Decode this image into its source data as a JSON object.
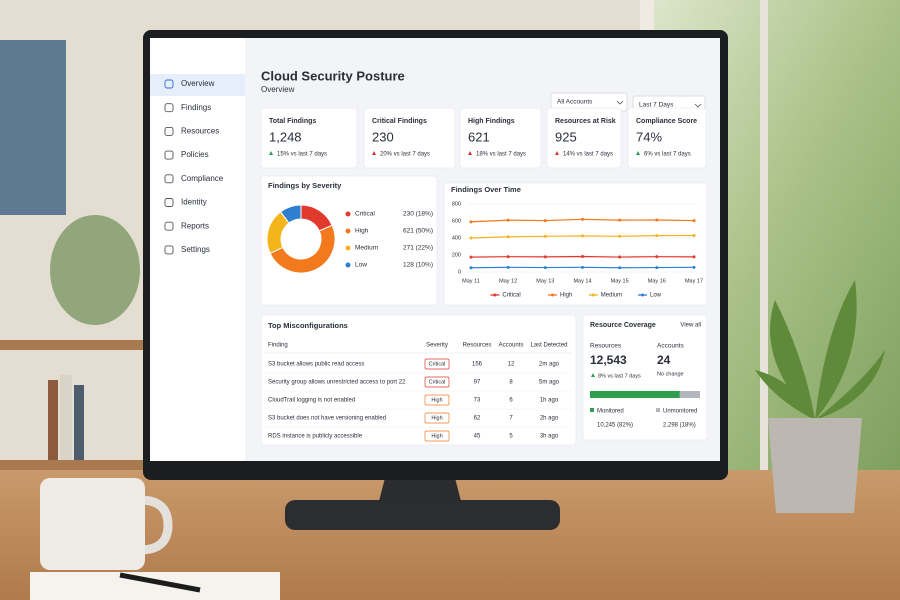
{
  "sidebar": {
    "items": [
      "Overview",
      "Findings",
      "Resources",
      "Policies",
      "Compliance",
      "Identity",
      "Reports",
      "Settings"
    ]
  },
  "header": {
    "title": "Cloud Security Posture",
    "subtitle": "Overview",
    "filters": [
      "All Accounts",
      "Last 7 Days"
    ]
  },
  "kpis": [
    {
      "label": "Total Findings",
      "value": "1,248",
      "change": "15% vs last 7 days",
      "color": "#d63a2f",
      "arrow_color": "#2e9e4f"
    },
    {
      "label": "Critical Findings",
      "value": "230",
      "change": "20% vs last 7 days",
      "color": "#d63a2f",
      "arrow_color": "#d63a2f"
    },
    {
      "label": "High Findings",
      "value": "621",
      "change": "18% vs last 7 days",
      "color": "#d63a2f",
      "arrow_color": "#d63a2f"
    },
    {
      "label": "Resources at Risk",
      "value": "925",
      "change": "14% vs last 7 days",
      "color": "#d63a2f",
      "arrow_color": "#d63a2f"
    },
    {
      "label": "Compliance Score",
      "value": "74%",
      "change": "6% vs last 7 days",
      "color": "#2e9e4f",
      "arrow_color": "#2e9e4f"
    }
  ],
  "chart_data": [
    {
      "type": "pie",
      "title": "Findings by Severity",
      "categories": [
        "Critical",
        "High",
        "Medium",
        "Low"
      ],
      "values": [
        230,
        621,
        271,
        128
      ],
      "value_labels": [
        "230 (18%)",
        "621 (50%)",
        "271 (22%)",
        "128 (10%)"
      ],
      "colors": [
        "#e0392e",
        "#f27a1c",
        "#f4b41c",
        "#2f7fd0"
      ]
    },
    {
      "type": "line",
      "title": "Findings Over Time",
      "categories": [
        "May 11",
        "May 12",
        "May 13",
        "May 14",
        "May 15",
        "May 16",
        "May 17"
      ],
      "series": [
        {
          "name": "Critical",
          "color": "#e0392e",
          "values": [
            175,
            180,
            178,
            182,
            176,
            180,
            178
          ]
        },
        {
          "name": "High",
          "color": "#f27a1c",
          "values": [
            590,
            610,
            605,
            620,
            610,
            612,
            605
          ]
        },
        {
          "name": "Medium",
          "color": "#f4b41c",
          "values": [
            400,
            415,
            420,
            425,
            420,
            428,
            430
          ]
        },
        {
          "name": "Low",
          "color": "#2f7fd0",
          "values": [
            50,
            55,
            52,
            55,
            50,
            52,
            55
          ]
        }
      ],
      "ylim": [
        0,
        800
      ],
      "yticks": [
        0,
        200,
        400,
        600,
        800
      ],
      "grid": true,
      "legend": "bottom"
    }
  ],
  "table": {
    "title": "Top Misconfigurations",
    "columns": [
      "Finding",
      "Severity",
      "Resources",
      "Accounts",
      "Last Detected"
    ],
    "rows": [
      [
        "S3 bucket allows public read access",
        "Critical",
        156,
        12,
        "2m ago"
      ],
      [
        "Security group allows unrestricted access to port 22",
        "Critical",
        97,
        8,
        "5m ago"
      ],
      [
        "CloudTrail logging is not enabled",
        "High",
        73,
        6,
        "1h ago"
      ],
      [
        "S3 bucket does not have versioning enabled",
        "High",
        62,
        7,
        "2h ago"
      ],
      [
        "RDS instance is publicly accessible",
        "High",
        45,
        5,
        "3h ago"
      ]
    ]
  },
  "coverage": {
    "title": "Resource Coverage",
    "link": "View all",
    "resources": {
      "label": "Resources",
      "value": "12,543",
      "change": "8% vs last 7 days"
    },
    "accounts": {
      "label": "Accounts",
      "value": "24",
      "change": "No change"
    },
    "segments": [
      {
        "name": "Monitored",
        "value": 10245,
        "value_label": "10,245 (82%)",
        "color": "#2e9e4f"
      },
      {
        "name": "Unmonitored",
        "value": 2298,
        "value_label": "2,298 (18%)",
        "color": "#b3b7bd"
      }
    ]
  }
}
